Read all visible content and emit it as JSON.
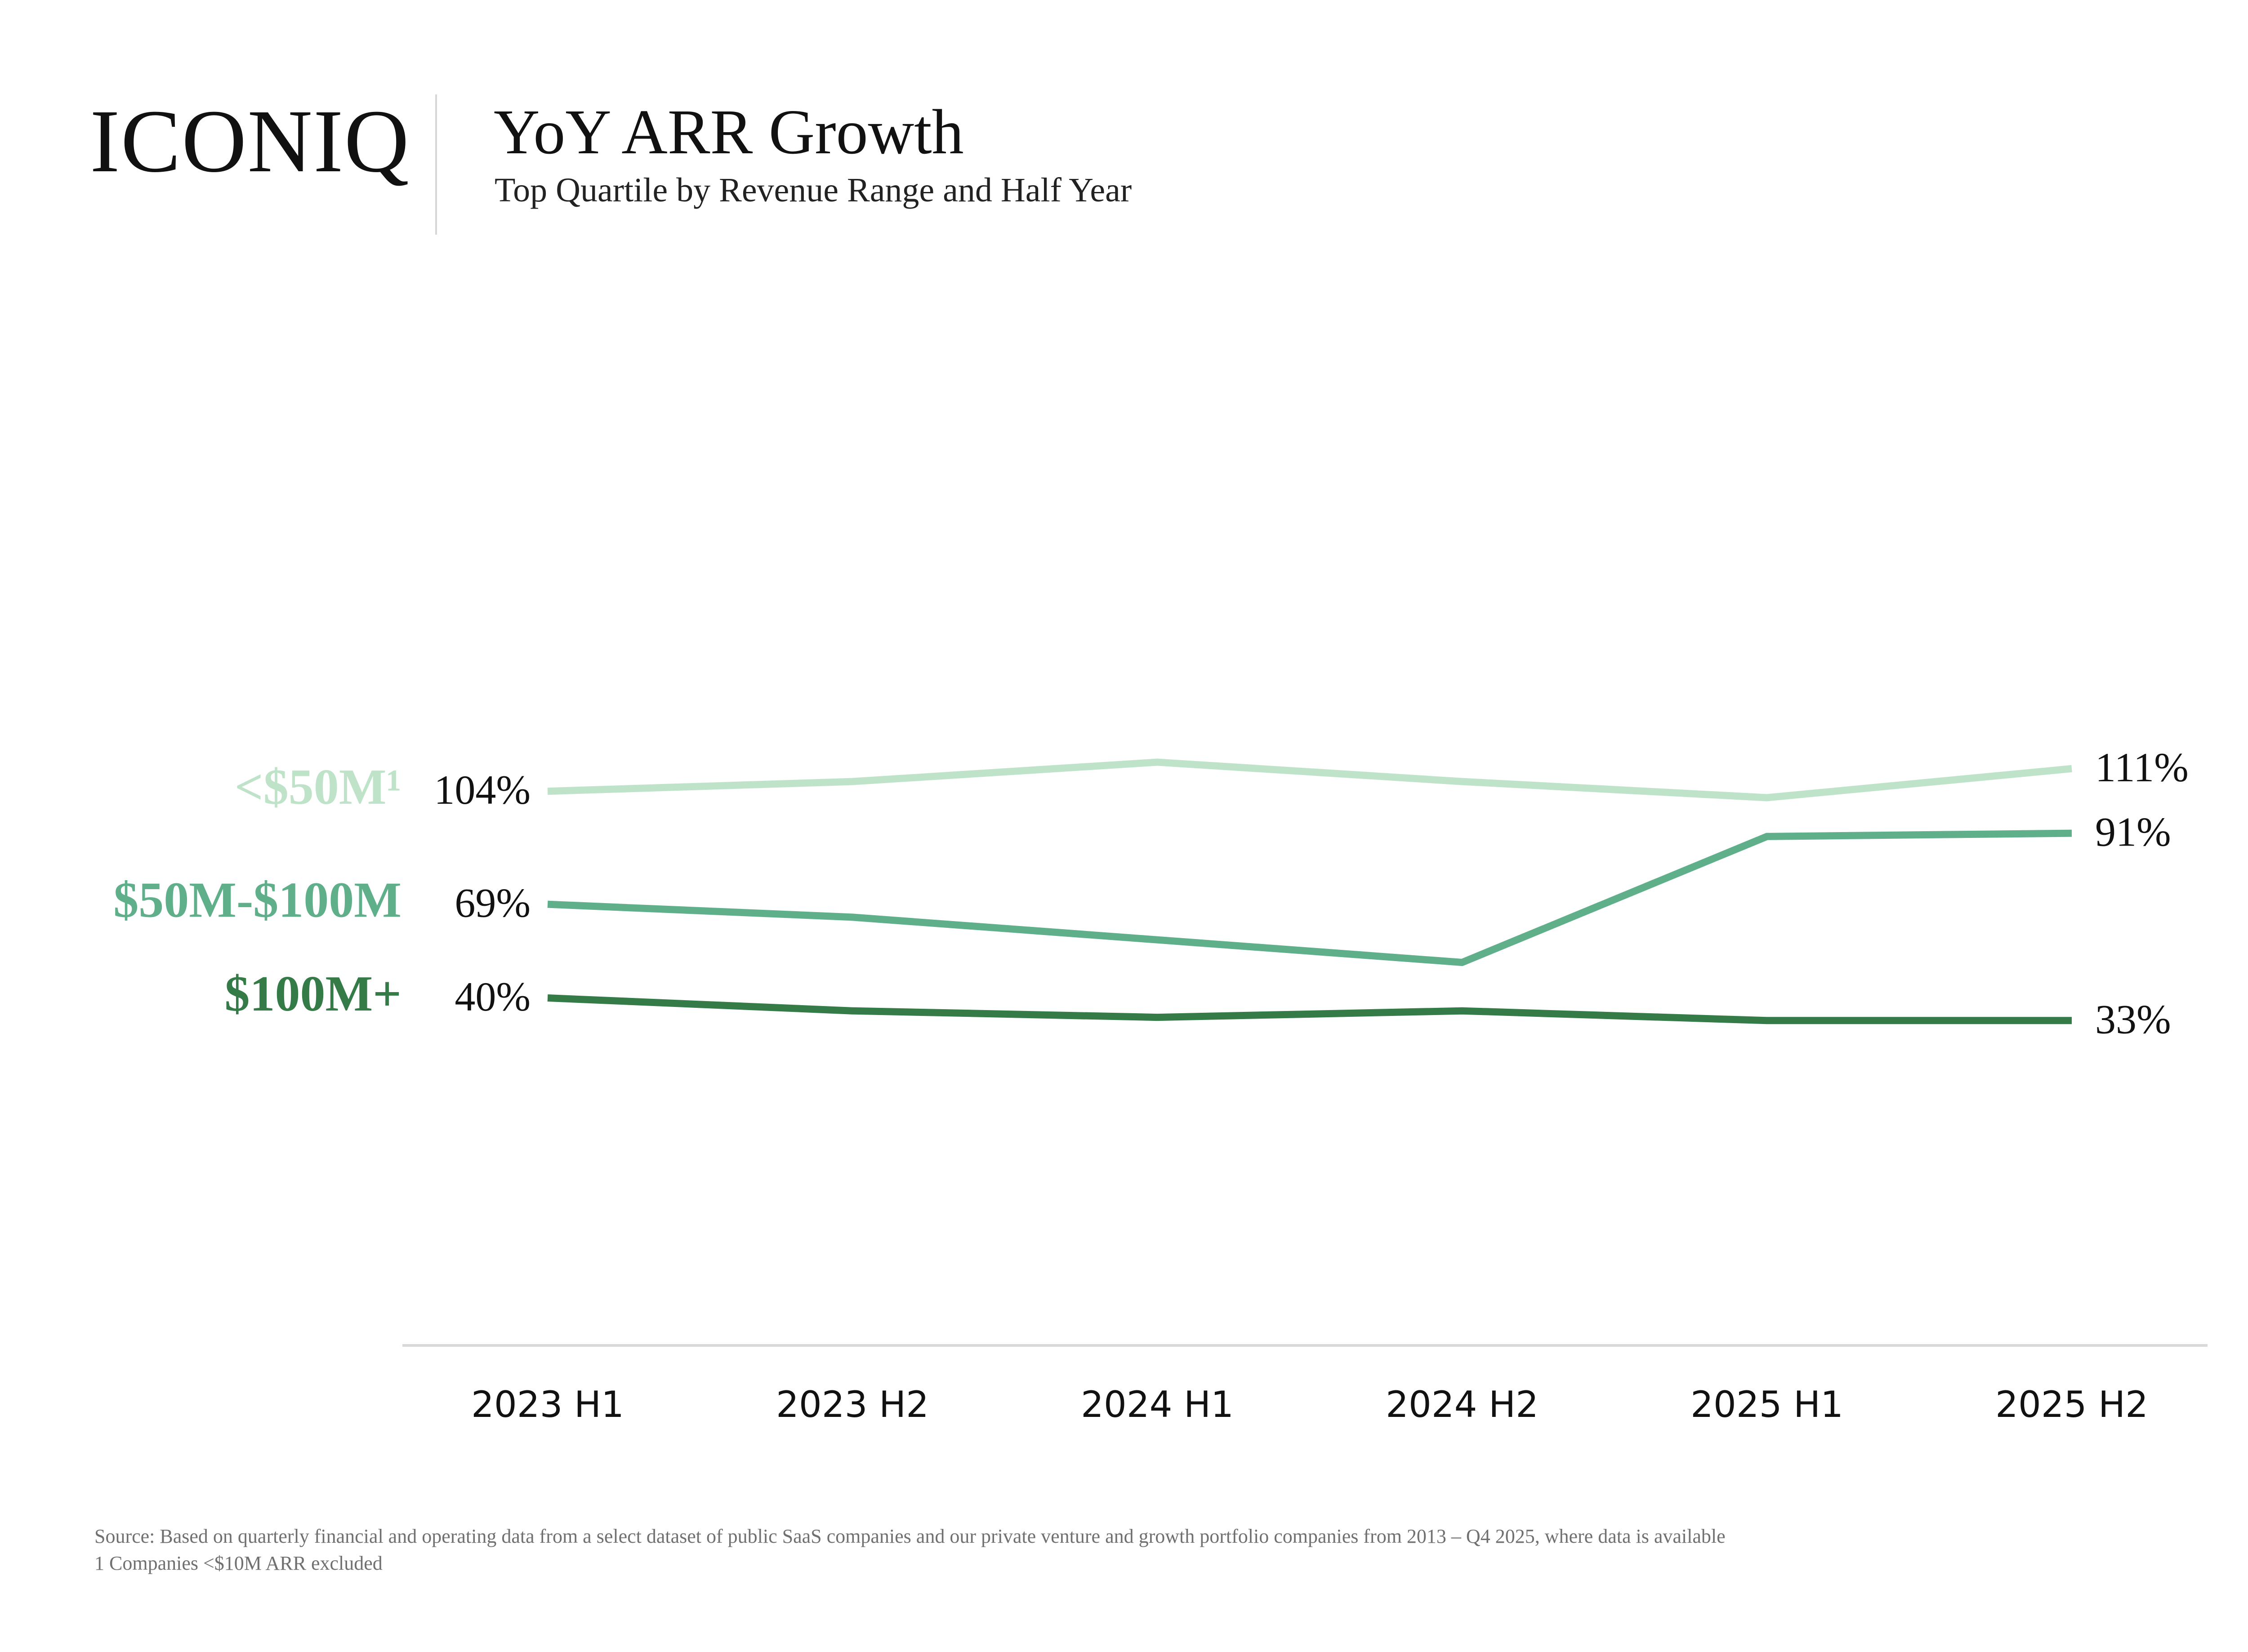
{
  "brand": {
    "logo_text": "ICONIQ"
  },
  "header": {
    "title": "YoY ARR Growth",
    "subtitle": "Top Quartile by Revenue Range and Half Year"
  },
  "chart_data": {
    "type": "line",
    "title": "YoY ARR Growth",
    "subtitle": "Top Quartile by Revenue Range and Half Year",
    "xlabel": "",
    "ylabel": "",
    "categories": [
      "2023 H1",
      "2023 H2",
      "2024 H1",
      "2024 H2",
      "2025 H1",
      "2025 H2"
    ],
    "ylim": [
      0,
      125
    ],
    "grid": false,
    "legend": "inline-left",
    "series": [
      {
        "name": "<$50M¹",
        "color": "#bfe3c8",
        "values": [
          104,
          107,
          113,
          107,
          102,
          111
        ],
        "start_label": "104%",
        "end_label": "111%"
      },
      {
        "name": "$50M-$100M",
        "color": "#5faf8a",
        "values": [
          69,
          65,
          58,
          51,
          90,
          91
        ],
        "start_label": "69%",
        "end_label": "91%"
      },
      {
        "name": "$100M+",
        "color": "#347b48",
        "values": [
          40,
          36,
          34,
          36,
          33,
          33
        ],
        "start_label": "40%",
        "end_label": "33%"
      }
    ]
  },
  "footer": {
    "source": "Source: Based on quarterly financial and operating data from a select dataset of public SaaS companies and our private venture and growth portfolio companies from 2013 – Q4 2025, where data is available",
    "note": "1 Companies <$10M ARR excluded"
  }
}
